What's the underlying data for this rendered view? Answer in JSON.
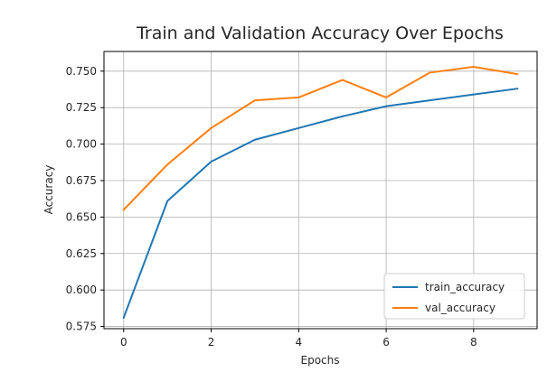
{
  "chart_data": {
    "type": "line",
    "title": "Train and Validation Accuracy Over Epochs",
    "xlabel": "Epochs",
    "ylabel": "Accuracy",
    "x": [
      0,
      1,
      2,
      3,
      4,
      5,
      6,
      7,
      8,
      9
    ],
    "xlim": [
      -0.45,
      9.45
    ],
    "ylim": [
      0.5735,
      0.7635
    ],
    "xticks": [
      0,
      2,
      4,
      6,
      8
    ],
    "yticks": [
      0.575,
      0.6,
      0.625,
      0.65,
      0.675,
      0.7,
      0.725,
      0.75
    ],
    "xtick_labels": [
      "0",
      "2",
      "4",
      "6",
      "8"
    ],
    "ytick_labels": [
      "0.575",
      "0.600",
      "0.625",
      "0.650",
      "0.675",
      "0.700",
      "0.725",
      "0.750"
    ],
    "grid": true,
    "legend_position": "lower-right",
    "series": [
      {
        "name": "train_accuracy",
        "color": "#1f77b4",
        "values": [
          0.581,
          0.661,
          0.688,
          0.703,
          0.711,
          0.719,
          0.726,
          0.73,
          0.734,
          0.738
        ]
      },
      {
        "name": "val_accuracy",
        "color": "#ff7f0e",
        "values": [
          0.655,
          0.686,
          0.711,
          0.73,
          0.732,
          0.744,
          0.732,
          0.749,
          0.753,
          0.748
        ]
      }
    ]
  }
}
